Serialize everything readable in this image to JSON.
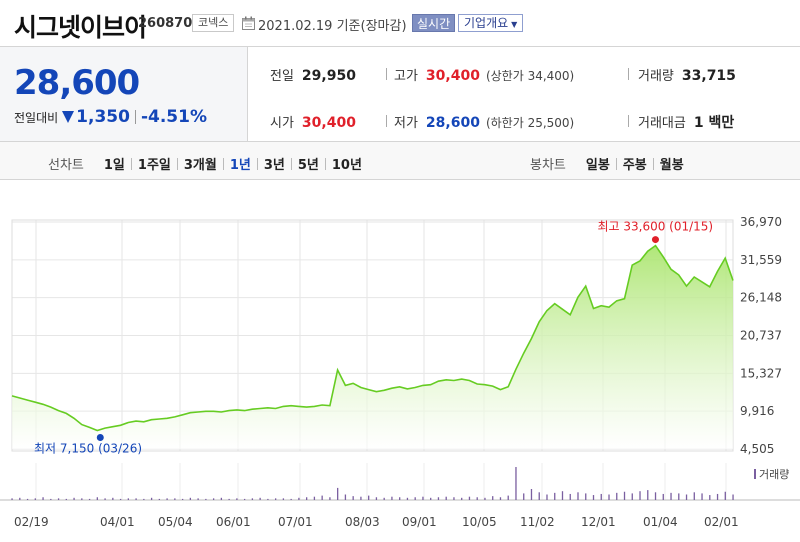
{
  "header": {
    "title": "시그넷이브이",
    "code": "260870",
    "market": "코넥스",
    "date": "2021.02.19",
    "date_suffix": "기준(장마감)",
    "realtime_label": "실시간",
    "company_button": "기업개요",
    "icons": [
      "calendar-icon",
      "caret-down-icon"
    ]
  },
  "price": {
    "current": "28,600",
    "change_label": "전일대비",
    "change": "1,350",
    "change_direction": "down",
    "change_pct": "-4.51%"
  },
  "stats": {
    "prev_close_label": "전일",
    "prev_close": "29,950",
    "high_label": "고가",
    "high": "30,400",
    "upper_limit": "(상한가 34,400)",
    "volume_label": "거래량",
    "volume": "33,715",
    "open_label": "시가",
    "open": "30,400",
    "low_label": "저가",
    "low": "28,600",
    "lower_limit": "(하한가 25,500)",
    "amount_label": "거래대금",
    "amount": "1 백만"
  },
  "line_tabs": {
    "label": "선차트",
    "items": [
      "1일",
      "1주일",
      "3개월",
      "1년",
      "3년",
      "5년",
      "10년"
    ],
    "active": "1년"
  },
  "candle_tabs": {
    "label": "봉차트",
    "items": [
      "일봉",
      "주봉",
      "월봉"
    ]
  },
  "colors": {
    "up": "#e0202a",
    "down": "#1446b8",
    "area_fill": "#c8f0a0",
    "line": "#66cc22",
    "volume_bar": "#7a5fa0"
  },
  "chart_data": {
    "type": "area",
    "y_ticks": [
      "36,970",
      "31,559",
      "26,148",
      "20,737",
      "15,327",
      "9,916",
      "4,505"
    ],
    "ylim": [
      4505,
      36970
    ],
    "x_labels": [
      "02/19",
      "04/01",
      "05/04",
      "06/01",
      "07/01",
      "08/03",
      "09/01",
      "10/05",
      "11/02",
      "12/01",
      "01/04",
      "02/01"
    ],
    "high_annotation": "최고 33,600 (01/15)",
    "low_annotation": "최저 7,150 (03/26)",
    "volume_legend": "거래량",
    "series": [
      {
        "values": [
          12100,
          11800,
          11500,
          11200,
          10900,
          10500,
          10000,
          9600,
          8900,
          8000,
          7600,
          7150,
          7500,
          7700,
          7900,
          8300,
          8500,
          8400,
          8700,
          8800,
          8900,
          9100,
          9400,
          9700,
          9800,
          9900,
          9900,
          9800,
          10000,
          10100,
          10000,
          10200,
          10300,
          10400,
          10300,
          10600,
          10700,
          10600,
          10500,
          10600,
          10800,
          10700,
          15800,
          13600,
          13900,
          13300,
          13000,
          12700,
          12900,
          13200,
          13400,
          13100,
          13300,
          13600,
          13700,
          14200,
          14400,
          14300,
          14500,
          14300,
          13800,
          13700,
          13500,
          13000,
          13400,
          15900,
          18200,
          20300,
          22700,
          24300,
          25300,
          24500,
          23700,
          26200,
          27800,
          24600,
          25000,
          24800,
          25700,
          26000,
          30800,
          31400,
          32800,
          33600,
          32000,
          30200,
          29400,
          27800,
          29100,
          28400,
          27700,
          29900,
          31800,
          28600
        ]
      }
    ],
    "volume": [
      3,
      4,
      2,
      3,
      5,
      2,
      3,
      2,
      4,
      3,
      2,
      5,
      3,
      4,
      2,
      3,
      3,
      2,
      4,
      2,
      3,
      3,
      2,
      4,
      3,
      2,
      3,
      4,
      2,
      3,
      2,
      3,
      4,
      2,
      3,
      3,
      2,
      4,
      5,
      6,
      8,
      5,
      22,
      10,
      7,
      6,
      8,
      5,
      4,
      6,
      5,
      4,
      5,
      6,
      4,
      5,
      6,
      5,
      4,
      6,
      5,
      4,
      7,
      5,
      8,
      60,
      12,
      20,
      14,
      10,
      13,
      16,
      11,
      14,
      12,
      9,
      11,
      10,
      13,
      15,
      12,
      16,
      18,
      14,
      11,
      13,
      12,
      10,
      14,
      12,
      9,
      11,
      15,
      10
    ]
  }
}
